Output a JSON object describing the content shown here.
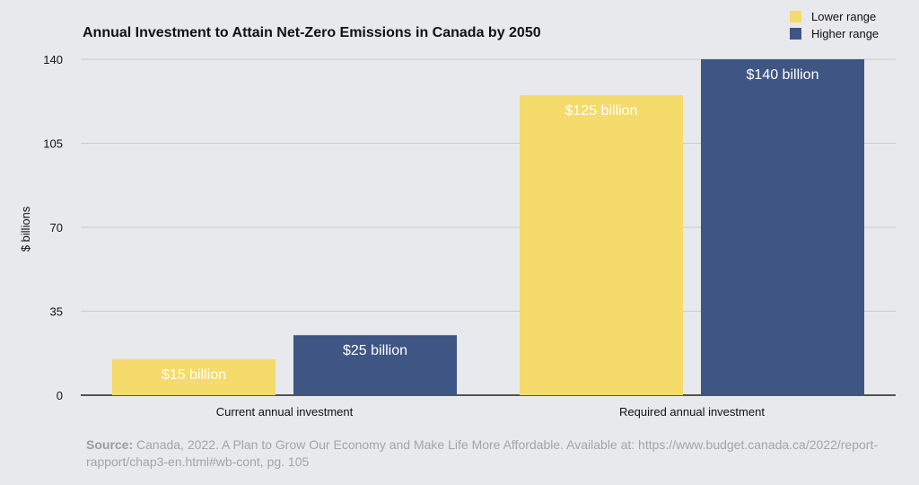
{
  "chart_data": {
    "type": "bar",
    "title": "Annual Investment to Attain Net-Zero Emissions in Canada by 2050",
    "ylabel": "$ billions",
    "xlabel": "",
    "ylim": [
      0,
      140
    ],
    "yticks": [
      "0",
      "35",
      "70",
      "105",
      "140"
    ],
    "categories": [
      "Current annual investment",
      "Required annual investment"
    ],
    "series": [
      {
        "name": "Lower range",
        "values": [
          15,
          125
        ],
        "labels": [
          "$15 billion",
          "$125 billion"
        ],
        "color": "#f4db6b"
      },
      {
        "name": "Higher range",
        "values": [
          25,
          140
        ],
        "labels": [
          "$25 billion",
          "$140 billion"
        ],
        "color": "#3f5584"
      }
    ],
    "grid": true,
    "legend": "top-right"
  },
  "source": {
    "label": "Source:",
    "text": "Canada, 2022. A Plan to Grow Our Economy and Make Life More Affordable. Available at: https://www.budget.canada.ca/2022/report-rapport/chap3-en.html#wb-cont, pg. 105"
  },
  "colors": {
    "background": "#e8e9ec",
    "grid": "#c9cacd",
    "axis": "#222222",
    "label_text": "#ffffff"
  }
}
